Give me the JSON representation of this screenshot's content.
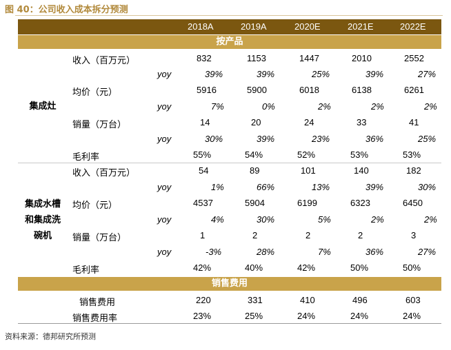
{
  "title": "图 40：公司收入成本拆分预测",
  "years": [
    "2018A",
    "2019A",
    "2020E",
    "2021E",
    "2022E"
  ],
  "section1": "按产品",
  "groupA": {
    "name": "集成灶"
  },
  "groupB": {
    "lines": [
      "集成水槽",
      "和集成洗",
      "碗机"
    ]
  },
  "labels": {
    "revenue": "收入（百万元）",
    "yoy": "yoy",
    "price": "均价（元）",
    "volume": "销量（万台）",
    "margin": "毛利率"
  },
  "rowsA": {
    "revenue": [
      "832",
      "1153",
      "1447",
      "2010",
      "2552"
    ],
    "revenue_yoy": [
      "39%",
      "39%",
      "25%",
      "39%",
      "27%"
    ],
    "price": [
      "5916",
      "5900",
      "6018",
      "6138",
      "6261"
    ],
    "price_yoy": [
      "7%",
      "0%",
      "2%",
      "2%",
      "2%"
    ],
    "volume": [
      "14",
      "20",
      "24",
      "33",
      "41"
    ],
    "volume_yoy": [
      "30%",
      "39%",
      "23%",
      "36%",
      "25%"
    ],
    "margin": [
      "55%",
      "54%",
      "52%",
      "53%",
      "53%"
    ]
  },
  "rowsB": {
    "revenue": [
      "54",
      "89",
      "101",
      "140",
      "182"
    ],
    "revenue_yoy": [
      "1%",
      "66%",
      "13%",
      "39%",
      "30%"
    ],
    "price": [
      "4537",
      "5904",
      "6199",
      "6323",
      "6450"
    ],
    "price_yoy": [
      "4%",
      "30%",
      "5%",
      "2%",
      "2%"
    ],
    "volume": [
      "1",
      "2",
      "2",
      "2",
      "3"
    ],
    "volume_yoy": [
      "-3%",
      "28%",
      "7%",
      "36%",
      "27%"
    ],
    "margin": [
      "42%",
      "40%",
      "42%",
      "50%",
      "50%"
    ]
  },
  "section2": "销售费用",
  "sales": {
    "expense_label": "销售费用",
    "expense": [
      "220",
      "331",
      "410",
      "496",
      "603"
    ],
    "rate_label": "销售费用率",
    "rate": [
      "23%",
      "25%",
      "24%",
      "24%",
      "24%"
    ]
  },
  "source": "资料来源：德邦研究所预测"
}
